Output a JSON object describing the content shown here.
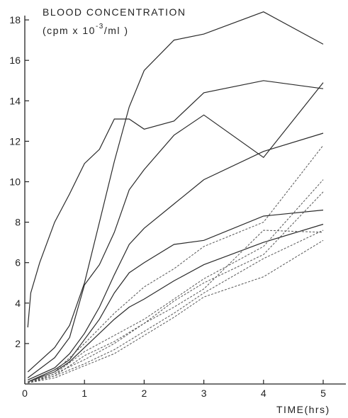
{
  "chart_data": {
    "type": "line",
    "ylabel_line1": "BLOOD CONCENTRATION",
    "ylabel_line2_prefix": "(cpm x 10",
    "ylabel_line2_exp": "-3",
    "ylabel_line2_suffix": "/ml )",
    "xlabel": "TIME(hrs)",
    "xlim": [
      0,
      5.35
    ],
    "ylim": [
      0,
      18.5
    ],
    "x_ticks": [
      0,
      1,
      2,
      3,
      4,
      5
    ],
    "y_ticks": [
      2,
      4,
      6,
      8,
      10,
      12,
      14,
      16,
      18
    ],
    "grid": false,
    "series": [
      {
        "style": "solid",
        "x": [
          0.05,
          0.1,
          0.25,
          0.5,
          0.75,
          1.0,
          1.25,
          1.5,
          1.75,
          2.0,
          2.5,
          3.0,
          4.0,
          5.0
        ],
        "y": [
          2.8,
          4.5,
          6.0,
          8.0,
          9.4,
          10.9,
          11.6,
          13.1,
          13.1,
          12.6,
          13.0,
          14.4,
          15.0,
          14.6
        ]
      },
      {
        "style": "solid",
        "x": [
          0.05,
          0.5,
          0.75,
          1.0,
          1.25,
          1.5,
          1.75,
          2.0,
          2.5,
          3.0,
          4.0,
          5.0
        ],
        "y": [
          0.6,
          1.8,
          2.9,
          5.0,
          8.0,
          11.0,
          13.7,
          15.5,
          17.0,
          17.3,
          18.4,
          16.8
        ]
      },
      {
        "style": "solid",
        "x": [
          0.05,
          0.5,
          0.75,
          1.0,
          1.25,
          1.5,
          1.75,
          2.0,
          2.5,
          3.0,
          4.0,
          5.0
        ],
        "y": [
          0.3,
          1.3,
          2.3,
          4.9,
          5.9,
          7.5,
          9.6,
          10.6,
          12.3,
          13.3,
          11.2,
          14.9
        ]
      },
      {
        "style": "solid",
        "x": [
          0.05,
          0.5,
          0.75,
          1.0,
          1.25,
          1.5,
          1.75,
          2.0,
          2.5,
          3.0,
          4.0,
          5.0
        ],
        "y": [
          0.2,
          0.8,
          1.5,
          2.5,
          3.8,
          5.4,
          6.9,
          7.7,
          8.9,
          10.1,
          11.5,
          12.4
        ]
      },
      {
        "style": "solid",
        "x": [
          0.05,
          0.5,
          0.75,
          1.0,
          1.25,
          1.5,
          1.75,
          2.0,
          2.5,
          3.0,
          4.0,
          5.0
        ],
        "y": [
          0.1,
          0.7,
          1.2,
          2.2,
          3.2,
          4.5,
          5.5,
          6.0,
          6.9,
          7.1,
          8.3,
          8.6
        ]
      },
      {
        "style": "solid",
        "x": [
          0.05,
          0.5,
          0.75,
          1.0,
          1.25,
          1.5,
          1.75,
          2.0,
          2.5,
          3.0,
          4.0,
          5.0
        ],
        "y": [
          0.1,
          0.6,
          1.1,
          1.8,
          2.5,
          3.2,
          3.8,
          4.2,
          5.1,
          5.9,
          7.0,
          7.9
        ]
      },
      {
        "style": "dashed",
        "x": [
          0.05,
          0.5,
          1.0,
          1.5,
          2.0,
          2.5,
          3.0,
          4.0,
          5.0
        ],
        "y": [
          0.1,
          0.6,
          2.0,
          3.5,
          4.8,
          5.7,
          6.8,
          8.0,
          11.8
        ]
      },
      {
        "style": "dashed",
        "x": [
          0.05,
          0.5,
          1.0,
          1.5,
          2.0,
          2.5,
          3.0,
          4.0,
          5.0
        ],
        "y": [
          0.1,
          0.5,
          1.6,
          2.4,
          3.2,
          4.2,
          5.2,
          6.8,
          10.1
        ]
      },
      {
        "style": "dashed",
        "x": [
          0.05,
          0.5,
          1.0,
          1.5,
          2.0,
          2.5,
          3.0,
          4.0,
          5.0
        ],
        "y": [
          0.1,
          0.4,
          1.4,
          2.1,
          3.0,
          4.1,
          5.0,
          6.4,
          9.5
        ]
      },
      {
        "style": "dashed",
        "x": [
          0.05,
          0.5,
          1.0,
          1.5,
          2.0,
          2.5,
          3.0,
          4.0,
          5.0
        ],
        "y": [
          0.05,
          0.5,
          1.2,
          2.0,
          3.0,
          3.8,
          4.7,
          7.6,
          7.5
        ]
      },
      {
        "style": "dashed",
        "x": [
          0.05,
          0.5,
          1.0,
          1.5,
          2.0,
          2.5,
          3.0,
          4.0,
          5.0
        ],
        "y": [
          0.05,
          0.4,
          1.0,
          1.7,
          2.6,
          3.5,
          4.5,
          6.2,
          7.6
        ]
      },
      {
        "style": "dashed",
        "x": [
          0.05,
          0.5,
          1.0,
          1.5,
          2.0,
          2.5,
          3.0,
          4.0,
          5.0
        ],
        "y": [
          0.05,
          0.3,
          0.9,
          1.5,
          2.4,
          3.3,
          4.3,
          5.3,
          7.1
        ]
      }
    ]
  }
}
